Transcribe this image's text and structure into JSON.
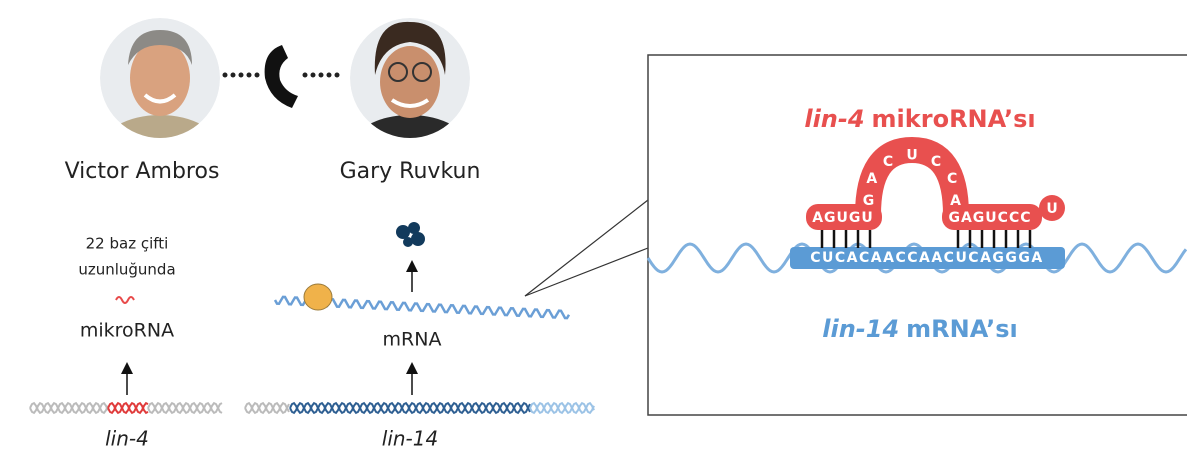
{
  "people": [
    {
      "name": "Victor Ambros"
    },
    {
      "name": "Gary Ruvkun"
    }
  ],
  "left": {
    "length_note": [
      "22 baz çifti",
      "uzunluğunda"
    ],
    "mirna_label": "mikroRNA",
    "mrna_label": "mRNA",
    "genes": [
      "lin-4",
      "lin-14"
    ]
  },
  "inset": {
    "mirna_title": {
      "gene": "lin-4",
      "suffix": "mikroRNA’sı"
    },
    "mrna_title": {
      "gene": "lin-14",
      "suffix": "mRNA’sı"
    },
    "mirna_seq": {
      "left_stem": "AGUGU",
      "loop": [
        "G",
        "A",
        "C",
        "U",
        "C",
        "C",
        "A"
      ],
      "right_stem": "GAGUCCC",
      "tail": "U"
    },
    "mrna_seq": "CUCACAACCAACUCAGGGA"
  }
}
